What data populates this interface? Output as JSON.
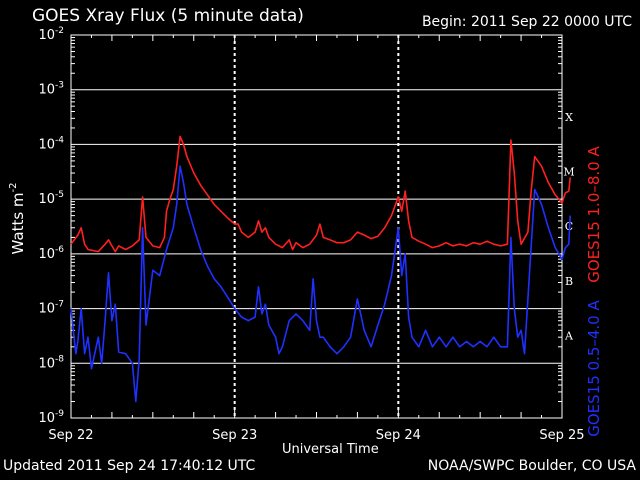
{
  "chart_data": {
    "type": "line",
    "title": "GOES Xray Flux (5 minute data)",
    "begin": "Begin:  2011 Sep 22 0000 UTC",
    "updated": "Updated 2011 Sep 24 17:40:12 UTC",
    "credit": "NOAA/SWPC Boulder, CO USA",
    "xlabel": "Universal Time",
    "ylabel_base": "Watts m",
    "ylabel_exp": "-2",
    "x_ticks": [
      "Sep 22",
      "Sep 23",
      "Sep 24",
      "Sep 25"
    ],
    "xlim_hours": [
      0,
      72
    ],
    "y_scale": "log",
    "ylim": [
      1e-09,
      0.01
    ],
    "y_ticks": [
      {
        "base": "10",
        "exp": "-2",
        "value": 0.01
      },
      {
        "base": "10",
        "exp": "-3",
        "value": 0.001
      },
      {
        "base": "10",
        "exp": "-4",
        "value": 0.0001
      },
      {
        "base": "10",
        "exp": "-5",
        "value": 1e-05
      },
      {
        "base": "10",
        "exp": "-6",
        "value": 1e-06
      },
      {
        "base": "10",
        "exp": "-7",
        "value": 1e-07
      },
      {
        "base": "10",
        "exp": "-8",
        "value": 1e-08
      },
      {
        "base": "10",
        "exp": "-9",
        "value": 1e-09
      }
    ],
    "flare_classes": [
      {
        "label": "X",
        "value": 0.00032
      },
      {
        "label": "M",
        "value": 3.2e-05
      },
      {
        "label": "C",
        "value": 3.2e-06
      },
      {
        "label": "B",
        "value": 3.2e-07
      },
      {
        "label": "A",
        "value": 3.2e-08
      }
    ],
    "series": [
      {
        "name": "GOES15 1.0–8.0 A",
        "color": "#ff2020",
        "points": [
          [
            0,
            1.5e-06
          ],
          [
            1,
            2.2e-06
          ],
          [
            1.5,
            3e-06
          ],
          [
            2,
            1.5e-06
          ],
          [
            2.5,
            1.2e-06
          ],
          [
            4,
            1.1e-06
          ],
          [
            5,
            1.5e-06
          ],
          [
            5.5,
            1.8e-06
          ],
          [
            6,
            1.4e-06
          ],
          [
            6.5,
            1.1e-06
          ],
          [
            7,
            1.4e-06
          ],
          [
            8,
            1.2e-06
          ],
          [
            9,
            1.4e-06
          ],
          [
            10,
            1.8e-06
          ],
          [
            10.5,
            1.1e-05
          ],
          [
            11,
            2e-06
          ],
          [
            12,
            1.4e-06
          ],
          [
            13,
            1.3e-06
          ],
          [
            13.7,
            2e-06
          ],
          [
            14,
            6e-06
          ],
          [
            14.5,
            1e-05
          ],
          [
            15,
            1.5e-05
          ],
          [
            15.5,
            4e-05
          ],
          [
            16,
            0.00014
          ],
          [
            16.5,
            0.0001
          ],
          [
            17,
            6e-05
          ],
          [
            18,
            3e-05
          ],
          [
            19,
            1.8e-05
          ],
          [
            20,
            1.2e-05
          ],
          [
            21,
            8e-06
          ],
          [
            22,
            6e-06
          ],
          [
            23,
            4.5e-06
          ],
          [
            24,
            3.5e-06
          ],
          [
            24.5,
            3.5e-06
          ],
          [
            25,
            2.5e-06
          ],
          [
            26,
            2e-06
          ],
          [
            27,
            2.5e-06
          ],
          [
            27.5,
            4e-06
          ],
          [
            28,
            2.5e-06
          ],
          [
            28.5,
            3e-06
          ],
          [
            29,
            2e-06
          ],
          [
            30,
            1.5e-06
          ],
          [
            31,
            1.3e-06
          ],
          [
            32,
            1.8e-06
          ],
          [
            32.5,
            1.2e-06
          ],
          [
            33,
            1.6e-06
          ],
          [
            34,
            1.3e-06
          ],
          [
            35,
            1.5e-06
          ],
          [
            36,
            2.2e-06
          ],
          [
            36.5,
            3.5e-06
          ],
          [
            37,
            2e-06
          ],
          [
            38,
            1.8e-06
          ],
          [
            39,
            1.6e-06
          ],
          [
            40,
            1.6e-06
          ],
          [
            41,
            1.8e-06
          ],
          [
            42,
            2.5e-06
          ],
          [
            43,
            2.2e-06
          ],
          [
            44,
            1.9e-06
          ],
          [
            45,
            2.1e-06
          ],
          [
            46,
            3e-06
          ],
          [
            47,
            5e-06
          ],
          [
            48,
            1.1e-05
          ],
          [
            48.5,
            6e-06
          ],
          [
            49,
            1.4e-05
          ],
          [
            49.5,
            4e-06
          ],
          [
            50,
            2e-06
          ],
          [
            51,
            1.7e-06
          ],
          [
            52,
            1.5e-06
          ],
          [
            53,
            1.3e-06
          ],
          [
            54,
            1.4e-06
          ],
          [
            55,
            1.6e-06
          ],
          [
            56,
            1.4e-06
          ],
          [
            57,
            1.5e-06
          ],
          [
            58,
            1.4e-06
          ],
          [
            59,
            1.6e-06
          ],
          [
            60,
            1.5e-06
          ],
          [
            61,
            1.7e-06
          ],
          [
            62,
            1.5e-06
          ],
          [
            63,
            1.4e-06
          ],
          [
            64,
            1.5e-06
          ],
          [
            64.5,
            0.00012
          ],
          [
            65,
            3e-05
          ],
          [
            65.5,
            4e-06
          ],
          [
            66,
            1.5e-06
          ],
          [
            67,
            2.5e-06
          ],
          [
            67.5,
            1.5e-05
          ],
          [
            68,
            6e-05
          ],
          [
            69,
            4e-05
          ],
          [
            70,
            2e-05
          ],
          [
            71,
            1.2e-05
          ],
          [
            72,
            8.5e-06
          ],
          [
            72.5,
            1.3e-05
          ],
          [
            73,
            1.4e-05
          ],
          [
            73.2,
            2.5e-05
          ]
        ]
      },
      {
        "name": "GOES15 0.5–4.0 A",
        "color": "#2030ff",
        "points": [
          [
            0,
            1e-07
          ],
          [
            0.7,
            1.5e-08
          ],
          [
            1,
            2.5e-08
          ],
          [
            1.5,
            1e-07
          ],
          [
            2,
            1.5e-08
          ],
          [
            2.5,
            3e-08
          ],
          [
            3,
            8e-09
          ],
          [
            4,
            3e-08
          ],
          [
            4.5,
            1e-08
          ],
          [
            5,
            6e-08
          ],
          [
            5.5,
            4.5e-07
          ],
          [
            6,
            6e-08
          ],
          [
            6.5,
            1.2e-07
          ],
          [
            7,
            1.6e-08
          ],
          [
            8,
            1.5e-08
          ],
          [
            9,
            1e-08
          ],
          [
            9.5,
            2e-09
          ],
          [
            10,
            1.2e-08
          ],
          [
            10.5,
            3e-06
          ],
          [
            11,
            5e-08
          ],
          [
            12,
            5e-07
          ],
          [
            13,
            4e-07
          ],
          [
            14,
            1.2e-06
          ],
          [
            15,
            3e-06
          ],
          [
            15.5,
            8e-06
          ],
          [
            16,
            4e-05
          ],
          [
            16.5,
            2e-05
          ],
          [
            17,
            8e-06
          ],
          [
            18,
            3e-06
          ],
          [
            19,
            1.2e-06
          ],
          [
            20,
            6e-07
          ],
          [
            21,
            3.5e-07
          ],
          [
            22,
            2.5e-07
          ],
          [
            23,
            1.6e-07
          ],
          [
            24,
            1e-07
          ],
          [
            25,
            7e-08
          ],
          [
            26,
            6e-08
          ],
          [
            27,
            7e-08
          ],
          [
            27.5,
            2.5e-07
          ],
          [
            28,
            8e-08
          ],
          [
            28.5,
            1.2e-07
          ],
          [
            29,
            5e-08
          ],
          [
            30,
            3e-08
          ],
          [
            30.5,
            1.5e-08
          ],
          [
            31,
            2e-08
          ],
          [
            32,
            6e-08
          ],
          [
            33,
            8e-08
          ],
          [
            34,
            6e-08
          ],
          [
            35,
            4e-08
          ],
          [
            35.5,
            3.5e-07
          ],
          [
            36,
            6e-08
          ],
          [
            36.5,
            3e-08
          ],
          [
            37,
            3e-08
          ],
          [
            38,
            2e-08
          ],
          [
            39,
            1.5e-08
          ],
          [
            40,
            2e-08
          ],
          [
            41,
            3e-08
          ],
          [
            42,
            1.5e-07
          ],
          [
            43,
            4e-08
          ],
          [
            44,
            2e-08
          ],
          [
            45,
            5e-08
          ],
          [
            46,
            1.2e-07
          ],
          [
            47,
            4e-07
          ],
          [
            48,
            3e-06
          ],
          [
            48.5,
            4e-07
          ],
          [
            49,
            1e-06
          ],
          [
            49.5,
            7e-08
          ],
          [
            50,
            3e-08
          ],
          [
            51,
            2e-08
          ],
          [
            52,
            4e-08
          ],
          [
            53,
            2e-08
          ],
          [
            54,
            3e-08
          ],
          [
            55,
            2e-08
          ],
          [
            56,
            3e-08
          ],
          [
            57,
            2e-08
          ],
          [
            58,
            2.5e-08
          ],
          [
            59,
            2e-08
          ],
          [
            60,
            2.5e-08
          ],
          [
            61,
            2e-08
          ],
          [
            62,
            3e-08
          ],
          [
            63,
            2e-08
          ],
          [
            64,
            2e-08
          ],
          [
            64.5,
            2e-06
          ],
          [
            65,
            1e-07
          ],
          [
            65.5,
            3e-08
          ],
          [
            66,
            4e-08
          ],
          [
            66.5,
            1.5e-08
          ],
          [
            67,
            1.5e-07
          ],
          [
            67.5,
            1.5e-06
          ],
          [
            68,
            1.5e-05
          ],
          [
            69,
            8e-06
          ],
          [
            70,
            3e-06
          ],
          [
            71,
            1.3e-06
          ],
          [
            72,
            8e-07
          ],
          [
            72.5,
            1.3e-06
          ],
          [
            73,
            1.5e-06
          ],
          [
            73.2,
            5e-06
          ]
        ]
      }
    ]
  }
}
